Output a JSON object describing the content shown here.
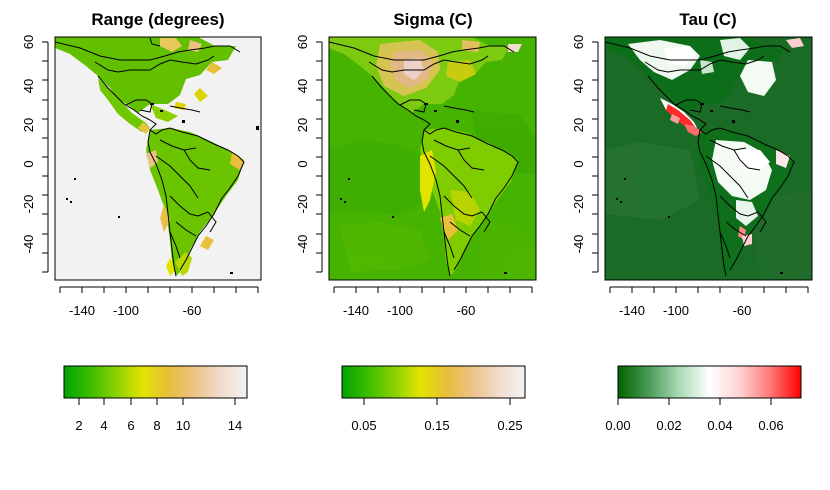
{
  "panels": [
    {
      "title": "Range (degrees)",
      "background": "#f2f2f2",
      "x_ticks": [
        "-140",
        "-100",
        "-60"
      ],
      "y_ticks": [
        "60",
        "40",
        "20",
        "0",
        "-20",
        "-40"
      ],
      "legend_ticks": [
        "2",
        "4",
        "6",
        "8",
        "10",
        "14"
      ],
      "legend_range": [
        1,
        15
      ],
      "colorscale": [
        "#00a300",
        "#3dbd00",
        "#8ad100",
        "#e3e300",
        "#e8be3a",
        "#ecc288",
        "#f1dccd",
        "#f2f2f2"
      ]
    },
    {
      "title": "Sigma (C)",
      "background": "#45b300",
      "x_ticks": [
        "-140",
        "-100",
        "-60"
      ],
      "y_ticks": [
        "60",
        "40",
        "20",
        "0",
        "-20",
        "-40"
      ],
      "legend_ticks": [
        "0.05",
        "0.15",
        "0.25"
      ],
      "legend_range": [
        0.02,
        0.27
      ],
      "colorscale": [
        "#00a300",
        "#3dbd00",
        "#8ad100",
        "#e3e300",
        "#e8be3a",
        "#ecc288",
        "#f1dccd",
        "#f2f2f2"
      ]
    },
    {
      "title": "Tau (C)",
      "background": "#1a6b26",
      "x_ticks": [
        "-140",
        "-100",
        "-60"
      ],
      "y_ticks": [
        "60",
        "40",
        "20",
        "0",
        "-20",
        "-40"
      ],
      "legend_ticks": [
        "0.00",
        "0.02",
        "0.04",
        "0.06"
      ],
      "legend_range": [
        0.0,
        0.072
      ],
      "colorscale": [
        "#006400",
        "#4a9a55",
        "#a9d9b5",
        "#ffffff",
        "#ffd1d1",
        "#ff7777",
        "#ff0000"
      ]
    }
  ],
  "colors": {
    "frame": "#000000",
    "range_land": "#6cc500",
    "sigma_land": "#7ccb10",
    "tau_land": "#0d6e1a",
    "tau_white": "#f4fbf4"
  }
}
